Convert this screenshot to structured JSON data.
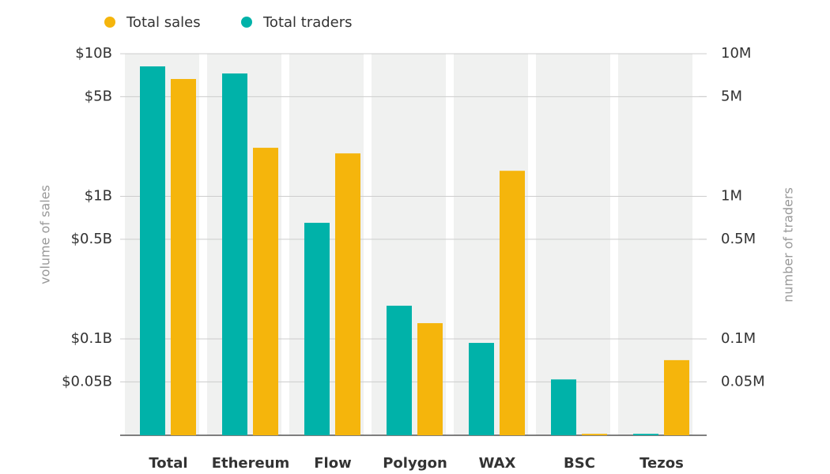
{
  "chart_data": {
    "type": "bar",
    "log_scale": true,
    "grid": true,
    "legend": "top",
    "y_label": "volume of sales",
    "y2_label": "number of traders",
    "categories": [
      "Total",
      "Ethereum",
      "Flow",
      "Polygon",
      "WAX",
      "BSC",
      "Tezos"
    ],
    "series": [
      {
        "name": "Total sales",
        "color": "#f5b50c",
        "values": [
          6650000000,
          2190000000,
          2000000000,
          129000000,
          1510000000,
          21600000,
          71000000
        ]
      },
      {
        "name": "Total traders",
        "color": "#00b2a9",
        "axis": "y2",
        "values": [
          8150000,
          7270000,
          652000,
          171000,
          93800,
          52000,
          21600
        ]
      }
    ],
    "ylim": [
      21100000,
      10000000000
    ],
    "yticks": [
      {
        "value": 10000000000,
        "label": "$10B"
      },
      {
        "value": 5000000000,
        "label": "$5B"
      },
      {
        "value": 1000000000,
        "label": "$1B"
      },
      {
        "value": 500000000,
        "label": "$0.5B"
      },
      {
        "value": 100000000,
        "label": "$0.1B"
      },
      {
        "value": 50000000,
        "label": "$0.05B"
      }
    ],
    "y2lim": [
      21100,
      10000000
    ],
    "y2ticks": [
      {
        "value": 10000000,
        "label": "10M"
      },
      {
        "value": 5000000,
        "label": "5M"
      },
      {
        "value": 1000000,
        "label": "1M"
      },
      {
        "value": 500000,
        "label": "0.5M"
      },
      {
        "value": 100000,
        "label": "0.1M"
      },
      {
        "value": 50000,
        "label": "0.05M"
      }
    ]
  }
}
